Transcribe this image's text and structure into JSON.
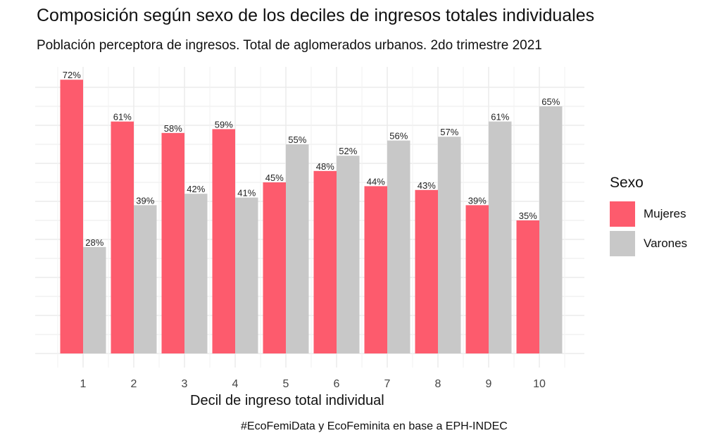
{
  "chart_data": {
    "type": "bar",
    "title": "Composición según sexo de los deciles de ingresos totales individuales",
    "subtitle": "Población perceptora de ingresos. Total de aglomerados urbanos. 2do trimestre 2021",
    "xlabel": "Decil de ingreso total individual",
    "ylabel": "",
    "caption": "#EcoFemiData y EcoFeminita en base a EPH-INDEC",
    "categories": [
      "1",
      "2",
      "3",
      "4",
      "5",
      "6",
      "7",
      "8",
      "9",
      "10"
    ],
    "series": [
      {
        "name": "Mujeres",
        "color": "#fd5b6d",
        "values": [
          72,
          61,
          58,
          59,
          45,
          48,
          44,
          43,
          39,
          35
        ],
        "labels": [
          "72%",
          "61%",
          "58%",
          "59%",
          "45%",
          "48%",
          "44%",
          "43%",
          "39%",
          "35%"
        ]
      },
      {
        "name": "Varones",
        "color": "#c8c8c8",
        "values": [
          28,
          39,
          42,
          41,
          55,
          52,
          56,
          57,
          61,
          65
        ],
        "labels": [
          "28%",
          "39%",
          "42%",
          "41%",
          "55%",
          "52%",
          "56%",
          "57%",
          "61%",
          "65%"
        ]
      }
    ],
    "ylim": [
      0,
      75
    ],
    "grid": true,
    "legend_title": "Sexo",
    "legend_position": "right"
  }
}
